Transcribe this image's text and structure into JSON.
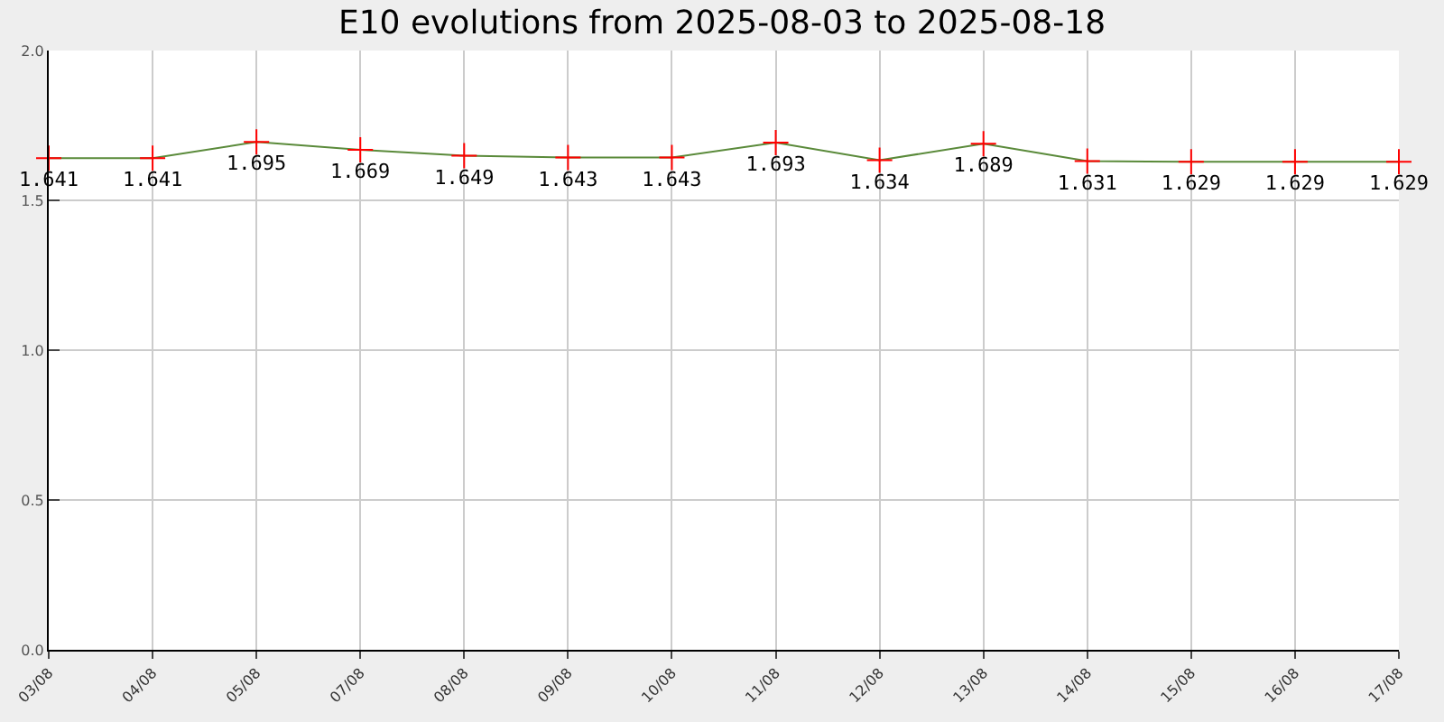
{
  "chart_data": {
    "type": "line",
    "title": "E10 evolutions from 2025-08-03 to 2025-08-18",
    "categories": [
      "03/08",
      "04/08",
      "05/08",
      "07/08",
      "08/08",
      "09/08",
      "10/08",
      "11/08",
      "12/08",
      "13/08",
      "14/08",
      "15/08",
      "16/08",
      "17/08"
    ],
    "series": [
      {
        "color": "#5a8a3a",
        "values": [
          1.641,
          1.641,
          1.695,
          1.669,
          1.649,
          1.643,
          1.643,
          1.693,
          1.634,
          1.689,
          1.631,
          1.629,
          1.629,
          1.629
        ]
      }
    ],
    "ylim": [
      0,
      2
    ],
    "yticks": [
      {
        "value": 0,
        "label": "0.0"
      },
      {
        "value": 0.5,
        "label": "0.5"
      },
      {
        "value": 1,
        "label": "1.0"
      },
      {
        "value": 1.5,
        "label": "1.5"
      },
      {
        "value": 2,
        "label": "2.0"
      }
    ],
    "grid": true,
    "marker": "cross",
    "data_labels": true
  }
}
